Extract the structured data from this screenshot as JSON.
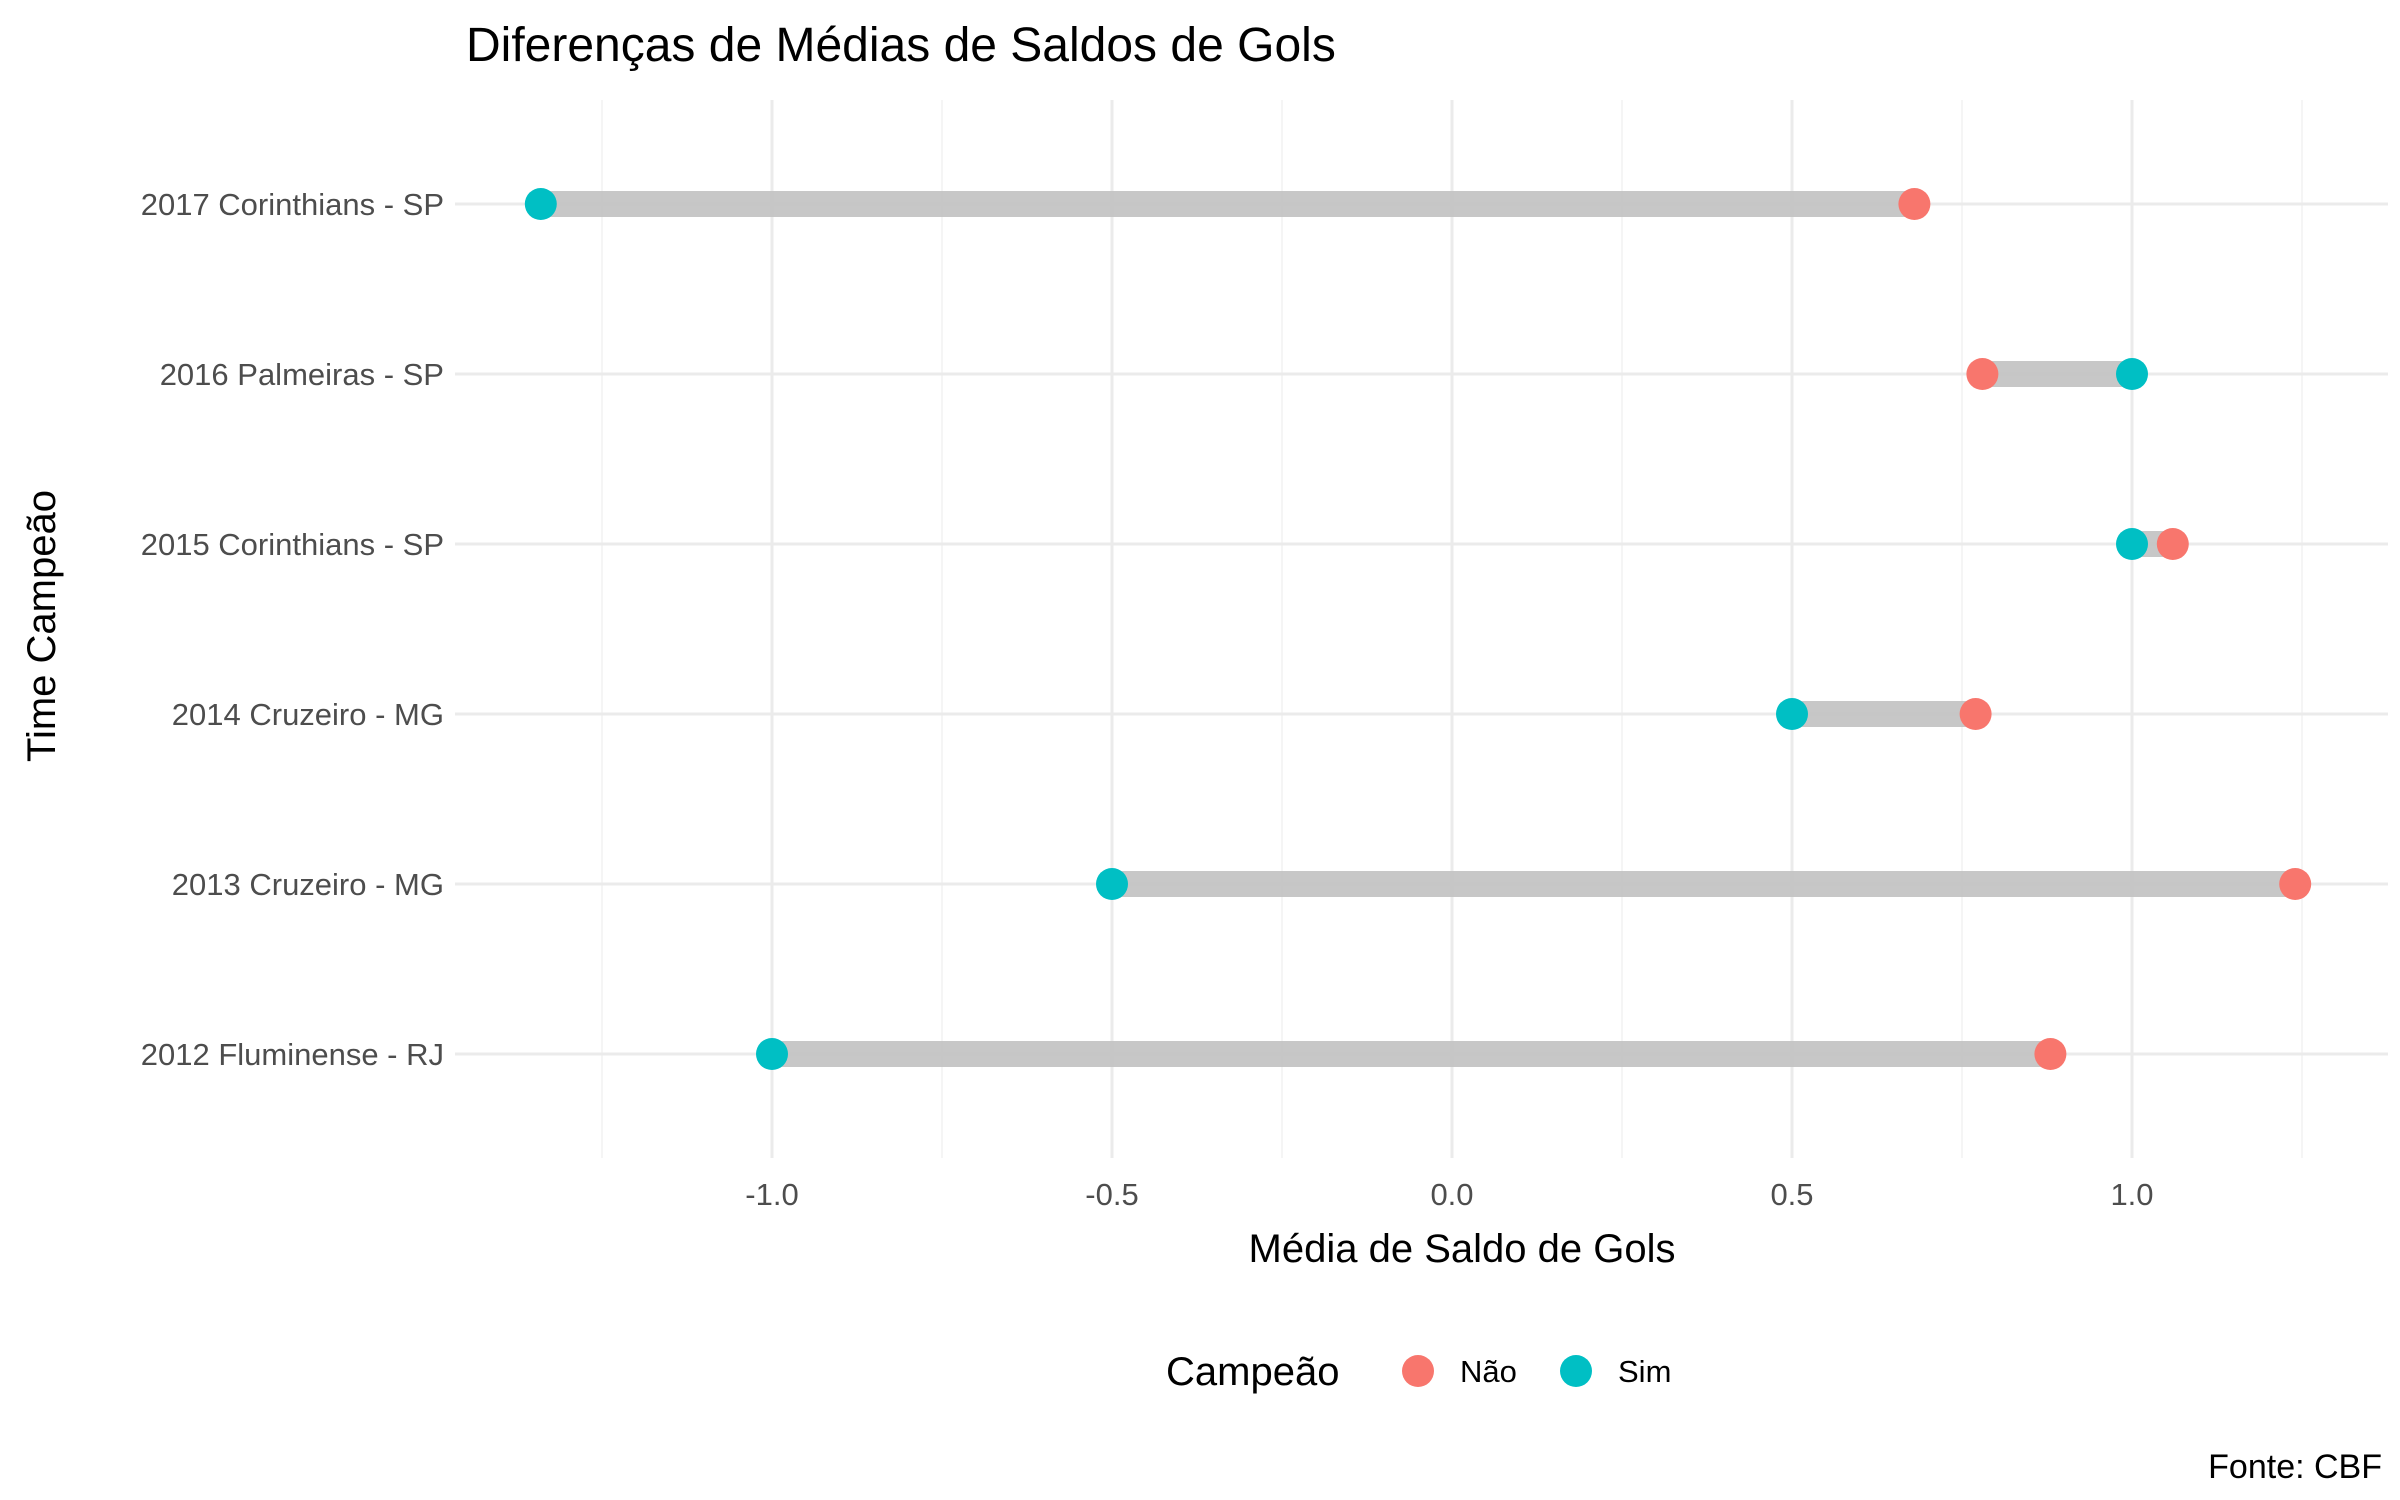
{
  "chart_data": {
    "type": "dumbbell",
    "title": "Diferenças de Médias de Saldos de Gols",
    "xlabel": "Média de Saldo de Gols",
    "ylabel": "Time Campeão",
    "caption": "Fonte: CBF",
    "xlim": [
      -1.47,
      1.38
    ],
    "x_ticks": [
      -1.0,
      -0.5,
      0.0,
      0.5,
      1.0
    ],
    "x_tick_labels": [
      "-1.0",
      "-0.5",
      "0.0",
      "0.5",
      "1.0"
    ],
    "categories": [
      "2017 Corinthians - SP",
      "2016 Palmeiras - SP",
      "2015 Corinthians - SP",
      "2014 Cruzeiro - MG",
      "2013 Cruzeiro - MG",
      "2012 Fluminense - RJ"
    ],
    "series": [
      {
        "name": "Não",
        "color": "#F8766D",
        "values": [
          0.68,
          0.78,
          1.06,
          0.77,
          1.24,
          0.88
        ]
      },
      {
        "name": "Sim",
        "color": "#00BFC4",
        "values": [
          -1.34,
          1.0,
          1.0,
          0.5,
          -0.5,
          -1.0
        ]
      }
    ],
    "legend": {
      "title": "Campeão",
      "position": "bottom"
    },
    "grid": true
  }
}
